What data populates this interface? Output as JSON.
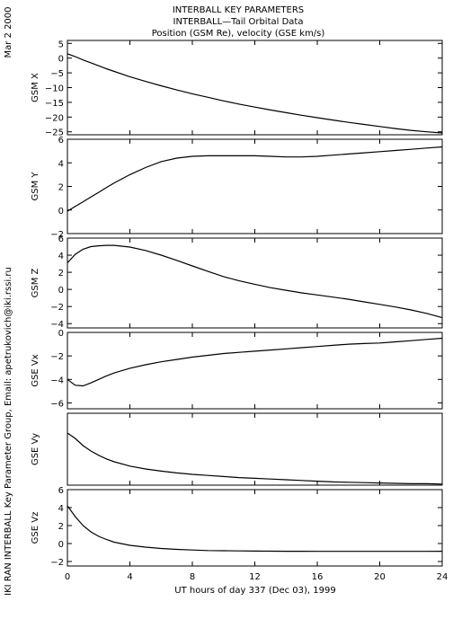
{
  "header": {
    "lines": [
      "INTERBALL KEY PARAMETERS",
      "INTERBALL—Tail Orbital Data",
      "Position (GSM Re), velocity (GSE km/s)"
    ]
  },
  "side_labels": {
    "date": "Mar  2 2000",
    "credit": "IKI RAN INTERBALL Key Parameter Group, Email: apetrukovich@iki.rssi.ru"
  },
  "colors": {
    "line": "#000000",
    "frame": "#000000",
    "background": "#ffffff"
  },
  "chart_data": {
    "type": "line",
    "xlabel": "UT hours of day 337 (Dec 03), 1999",
    "xlim": [
      0,
      24
    ],
    "xticks": [
      0,
      4,
      8,
      12,
      16,
      20,
      24
    ],
    "xtick_labels": [
      "0",
      "4",
      "8",
      "12",
      "16",
      "20",
      "24"
    ],
    "x": [
      0,
      0.5,
      1,
      1.5,
      2,
      2.5,
      3,
      4,
      5,
      6,
      7,
      8,
      9,
      10,
      11,
      12,
      13,
      14,
      15,
      16,
      17,
      18,
      19,
      20,
      21,
      22,
      23,
      24
    ],
    "panels": [
      {
        "ylabel": "GSM X",
        "ylim": [
          -26,
          6
        ],
        "yticks": [
          5,
          0,
          -5,
          -10,
          -15,
          -20,
          -25
        ],
        "ytick_labels": [
          "5",
          "0",
          "−5",
          "−10",
          "−15",
          "−20",
          "−25"
        ],
        "values": [
          1.5,
          0.5,
          -0.6,
          -1.6,
          -2.6,
          -3.6,
          -4.5,
          -6.3,
          -7.9,
          -9.4,
          -10.8,
          -12.1,
          -13.3,
          -14.5,
          -15.6,
          -16.6,
          -17.6,
          -18.5,
          -19.4,
          -20.2,
          -21.0,
          -21.8,
          -22.5,
          -23.2,
          -23.9,
          -24.5,
          -25.0,
          -25.4
        ]
      },
      {
        "ylabel": "GSM Y",
        "ylim": [
          -2,
          6
        ],
        "yticks": [
          6,
          4,
          2,
          0,
          -2
        ],
        "ytick_labels": [
          "6",
          "4",
          "2",
          "0",
          "−2"
        ],
        "values": [
          -0.1,
          0.3,
          0.7,
          1.1,
          1.5,
          1.9,
          2.3,
          3.0,
          3.6,
          4.1,
          4.4,
          4.55,
          4.6,
          4.6,
          4.6,
          4.6,
          4.55,
          4.5,
          4.5,
          4.55,
          4.65,
          4.75,
          4.85,
          4.95,
          5.05,
          5.15,
          5.25,
          5.35
        ]
      },
      {
        "ylabel": "GSM Z",
        "ylim": [
          -4.5,
          6
        ],
        "yticks": [
          6,
          4,
          2,
          0,
          -2,
          -4
        ],
        "ytick_labels": [
          "6",
          "4",
          "2",
          "0",
          "−2",
          "−4"
        ],
        "values": [
          3.1,
          4.1,
          4.7,
          5.0,
          5.1,
          5.15,
          5.15,
          4.95,
          4.55,
          4.0,
          3.4,
          2.75,
          2.1,
          1.5,
          1.0,
          0.6,
          0.2,
          -0.1,
          -0.4,
          -0.65,
          -0.9,
          -1.15,
          -1.45,
          -1.75,
          -2.05,
          -2.4,
          -2.8,
          -3.3
        ]
      },
      {
        "ylabel": "GSE Vx",
        "ylim": [
          -6.5,
          0
        ],
        "yticks": [
          0,
          -2,
          -4,
          -6
        ],
        "ytick_labels": [
          "0",
          "−2",
          "−4",
          "−6"
        ],
        "values": [
          -4.0,
          -4.5,
          -4.55,
          -4.3,
          -4.0,
          -3.7,
          -3.45,
          -3.05,
          -2.75,
          -2.5,
          -2.3,
          -2.1,
          -1.95,
          -1.8,
          -1.7,
          -1.6,
          -1.5,
          -1.4,
          -1.3,
          -1.2,
          -1.1,
          -1.0,
          -0.95,
          -0.9,
          -0.8,
          -0.7,
          -0.6,
          -0.5
        ]
      },
      {
        "ylabel": "GSE Vy",
        "ylim": [
          0,
          2
        ],
        "yticks": [],
        "ytick_labels": [],
        "values": [
          1.45,
          1.3,
          1.1,
          0.95,
          0.83,
          0.73,
          0.65,
          0.53,
          0.45,
          0.39,
          0.34,
          0.3,
          0.27,
          0.24,
          0.21,
          0.19,
          0.17,
          0.15,
          0.13,
          0.11,
          0.09,
          0.08,
          0.07,
          0.06,
          0.05,
          0.04,
          0.04,
          0.03
        ]
      },
      {
        "ylabel": "GSE Vz",
        "ylim": [
          -2.5,
          6
        ],
        "yticks": [
          6,
          4,
          2,
          0,
          -2
        ],
        "ytick_labels": [
          "6",
          "4",
          "2",
          "0",
          "−2"
        ],
        "values": [
          4.2,
          3.0,
          2.0,
          1.3,
          0.8,
          0.45,
          0.15,
          -0.2,
          -0.4,
          -0.55,
          -0.65,
          -0.72,
          -0.78,
          -0.8,
          -0.82,
          -0.84,
          -0.85,
          -0.86,
          -0.86,
          -0.87,
          -0.87,
          -0.87,
          -0.87,
          -0.87,
          -0.87,
          -0.87,
          -0.87,
          -0.86
        ]
      }
    ]
  }
}
